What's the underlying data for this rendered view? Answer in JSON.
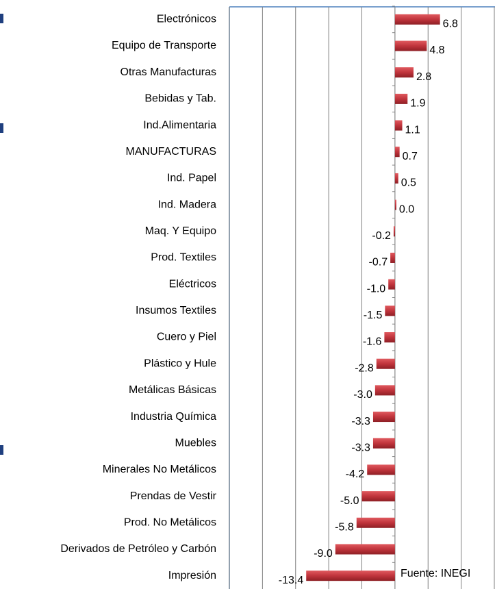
{
  "chart_data": {
    "type": "bar",
    "orientation": "horizontal",
    "categories": [
      "Electrónicos",
      "Equipo de Transporte",
      "Otras Manufacturas",
      "Bebidas y Tab.",
      "Ind.Alimentaria",
      "MANUFACTURAS",
      "Ind. Papel",
      "Ind. Madera",
      "Maq. Y Equipo",
      "Prod. Textiles",
      "Eléctricos",
      "Insumos Textiles",
      "Cuero y Piel",
      "Plástico y Hule",
      "Metálicas Básicas",
      "Industria Química",
      "Muebles",
      "Minerales No Metálicos",
      "Prendas de Vestir",
      "Prod. No Metálicos",
      "Derivados de Petróleo y Carbón",
      "Impresión"
    ],
    "values": [
      6.8,
      4.8,
      2.8,
      1.9,
      1.1,
      0.7,
      0.5,
      0.0,
      -0.2,
      -0.7,
      -1.0,
      -1.5,
      -1.6,
      -2.8,
      -3.0,
      -3.3,
      -3.3,
      -4.2,
      -5.0,
      -5.8,
      -9.0,
      -13.4
    ],
    "value_labels": [
      "6.8",
      "4.8",
      "2.8",
      "1.9",
      "1.1",
      "0.7",
      "0.5",
      "0.0",
      "-0.2",
      "-0.7",
      "-1.0",
      "-1.5",
      "-1.6",
      "-2.8",
      "-3.0",
      "-3.3",
      "-3.3",
      "-4.2",
      "-5.0",
      "-5.8",
      "-9.0",
      "-13.4"
    ],
    "color": "#c0343c",
    "xlim": [
      -25,
      15
    ],
    "xticks": [
      -25,
      -20,
      -15,
      -10,
      -5,
      0,
      5,
      10,
      15
    ],
    "grid": true,
    "annotation": "Fuente:  INEGI"
  }
}
